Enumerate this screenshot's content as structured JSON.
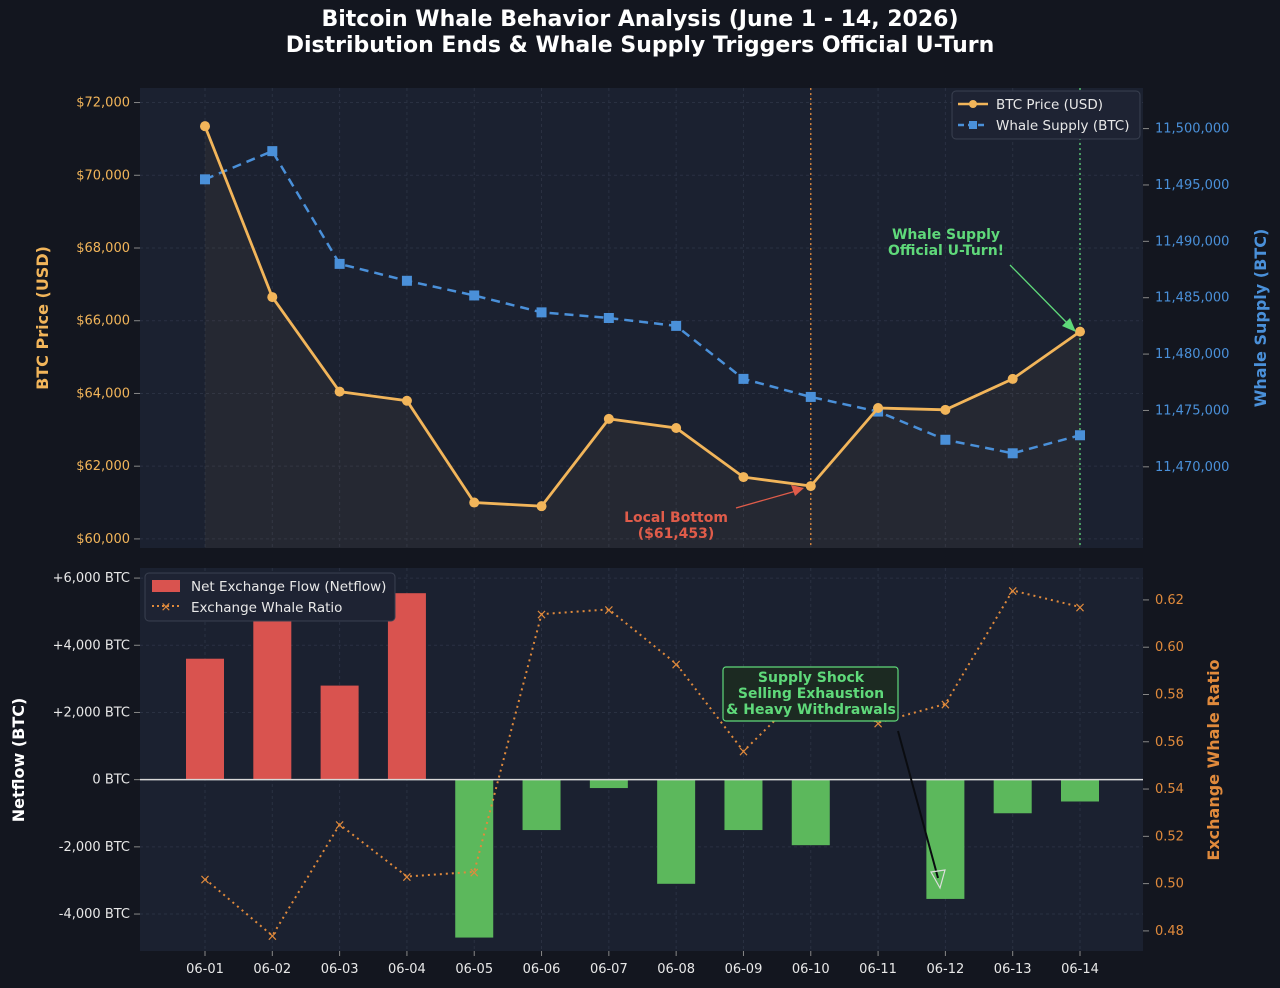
{
  "title_line1": "Bitcoin Whale Behavior Analysis (June 1 - 14, 2026)",
  "title_line2": "Distribution Ends & Whale Supply Triggers Official U-Turn",
  "colors": {
    "price": "#f2b55a",
    "supply": "#4a90d9",
    "netflow_positive": "#d9534f",
    "netflow_negative": "#5cb85c",
    "ratio": "#e08a3c",
    "annotation_green": "#5fd97a",
    "annotation_red": "#e05c4a"
  },
  "chart_data": [
    {
      "type": "line",
      "x": [
        "06-01",
        "06-02",
        "06-03",
        "06-04",
        "06-05",
        "06-06",
        "06-07",
        "06-08",
        "06-09",
        "06-10",
        "06-11",
        "06-12",
        "06-13",
        "06-14"
      ],
      "series": [
        {
          "name": "BTC Price (USD)",
          "axis": "left",
          "values": [
            71350,
            66650,
            64050,
            63800,
            61000,
            60900,
            63300,
            63050,
            61700,
            61453,
            63600,
            63550,
            64400,
            65700
          ]
        },
        {
          "name": "Whale Supply (BTC)",
          "axis": "right",
          "values": [
            11495500,
            11498000,
            11488000,
            11486500,
            11485200,
            11483700,
            11483200,
            11482500,
            11477800,
            11476200,
            11474900,
            11472400,
            11471200,
            11472800
          ]
        }
      ],
      "ylabel": "BTC Price (USD)",
      "y2label": "Whale Supply (BTC)",
      "ylim": [
        59750,
        72400
      ],
      "y2lim": [
        11462800,
        11503600
      ],
      "yticks": [
        "$60,000",
        "$62,000",
        "$64,000",
        "$66,000",
        "$68,000",
        "$70,000",
        "$72,000"
      ],
      "y2ticks": [
        "11,470,000",
        "11,475,000",
        "11,480,000",
        "11,485,000",
        "11,490,000",
        "11,495,000",
        "11,500,000"
      ],
      "grid": true,
      "legend": "top-right",
      "annotations": [
        {
          "text_line1": "Whale Supply",
          "text_line2": "Official U-Turn!",
          "target_x": "06-14"
        },
        {
          "text_line1": "Local Bottom",
          "text_line2": "($61,453)",
          "target_x": "06-10"
        }
      ]
    },
    {
      "type": "bar",
      "categories": [
        "06-01",
        "06-02",
        "06-03",
        "06-04",
        "06-05",
        "06-06",
        "06-07",
        "06-08",
        "06-09",
        "06-10",
        "06-11",
        "06-12",
        "06-13",
        "06-14"
      ],
      "series": [
        {
          "name": "Net Exchange Flow (Netflow)",
          "axis": "left",
          "values": [
            3600,
            6000,
            2800,
            5550,
            -4700,
            -1500,
            -250,
            -3100,
            -1500,
            -1950,
            0,
            -3550,
            -1000,
            -650
          ]
        },
        {
          "name": "Exchange Whale Ratio",
          "axis": "right",
          "kind": "line",
          "values": [
            0.502,
            0.478,
            0.525,
            0.503,
            0.505,
            0.614,
            0.616,
            0.593,
            0.556,
            0.584,
            0.568,
            0.576,
            0.624,
            0.617
          ]
        }
      ],
      "ylabel": "Netflow (BTC)",
      "y2label": "Exchange Whale Ratio",
      "ylim": [
        -5100,
        6300
      ],
      "y2lim": [
        0.4715,
        0.6335
      ],
      "yticks": [
        "-4,000 BTC",
        "-2,000 BTC",
        "0 BTC",
        "+2,000 BTC",
        "+4,000 BTC",
        "+6,000 BTC"
      ],
      "y2ticks": [
        "0.48",
        "0.50",
        "0.52",
        "0.54",
        "0.56",
        "0.58",
        "0.60",
        "0.62"
      ],
      "grid": true,
      "legend": "top-left",
      "annotations": [
        {
          "text_line1": "Supply Shock",
          "text_line2": "Selling Exhaustion",
          "text_line3": "& Heavy Withdrawals",
          "target_x": "06-12"
        }
      ]
    }
  ]
}
